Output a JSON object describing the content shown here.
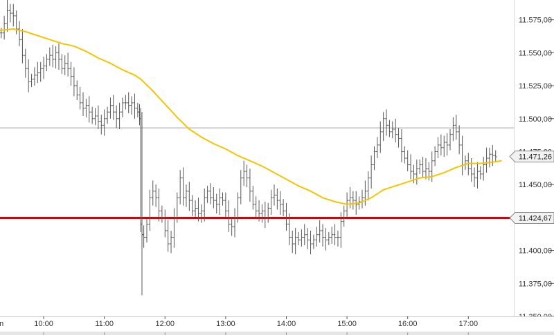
{
  "chart_data": {
    "type": "line",
    "title": "",
    "xlabel": "",
    "ylabel": "",
    "x_range": [
      9.28,
      17.75
    ],
    "ylim": [
      11350,
      11590
    ],
    "y_ticks": [
      11350,
      11375,
      11400,
      11425,
      11450,
      11475,
      11500,
      11525,
      11550,
      11575
    ],
    "y_tick_labels": [
      "11.350,00",
      "11.375,00",
      "11.400,00",
      "11.425,00",
      "11.450,00",
      "11.475,00",
      "11.500,00",
      "11.525,00",
      "11.550,00",
      "11.575,00"
    ],
    "x_ticks": [
      {
        "x": 9.27,
        "label": "un"
      },
      {
        "x": 10.0,
        "label": "10:00"
      },
      {
        "x": 11.0,
        "label": "11:00"
      },
      {
        "x": 12.0,
        "label": "12:00"
      },
      {
        "x": 13.0,
        "label": "13:00"
      },
      {
        "x": 14.0,
        "label": "14:00"
      },
      {
        "x": 15.0,
        "label": "15:00"
      },
      {
        "x": 16.0,
        "label": "16:00"
      },
      {
        "x": 17.0,
        "label": "17:00"
      }
    ],
    "grid": false,
    "series": [
      {
        "style": "ohlc-bars",
        "color": "#555555",
        "points": [
          [
            9.3,
            11565
          ],
          [
            9.35,
            11572
          ],
          [
            9.4,
            11582
          ],
          [
            9.45,
            11580
          ],
          [
            9.5,
            11578
          ],
          [
            9.55,
            11568
          ],
          [
            9.6,
            11560
          ],
          [
            9.65,
            11548
          ],
          [
            9.7,
            11538
          ],
          [
            9.75,
            11528
          ],
          [
            9.8,
            11530
          ],
          [
            9.85,
            11533
          ],
          [
            9.9,
            11535
          ],
          [
            9.95,
            11538
          ],
          [
            10.0,
            11540
          ],
          [
            10.05,
            11545
          ],
          [
            10.1,
            11548
          ],
          [
            10.15,
            11545
          ],
          [
            10.2,
            11550
          ],
          [
            10.25,
            11545
          ],
          [
            10.3,
            11538
          ],
          [
            10.35,
            11542
          ],
          [
            10.4,
            11538
          ],
          [
            10.45,
            11532
          ],
          [
            10.5,
            11525
          ],
          [
            10.55,
            11518
          ],
          [
            10.6,
            11512
          ],
          [
            10.65,
            11508
          ],
          [
            10.7,
            11510
          ],
          [
            10.75,
            11505
          ],
          [
            10.8,
            11500
          ],
          [
            10.85,
            11502
          ],
          [
            10.9,
            11498
          ],
          [
            10.95,
            11495
          ],
          [
            11.0,
            11500
          ],
          [
            11.05,
            11505
          ],
          [
            11.1,
            11510
          ],
          [
            11.15,
            11505
          ],
          [
            11.2,
            11500
          ],
          [
            11.25,
            11505
          ],
          [
            11.3,
            11512
          ],
          [
            11.35,
            11512
          ],
          [
            11.4,
            11510
          ],
          [
            11.45,
            11512
          ],
          [
            11.5,
            11508
          ],
          [
            11.55,
            11505
          ],
          [
            11.58,
            11500
          ],
          [
            11.6,
            11420
          ],
          [
            11.62,
            11412
          ],
          [
            11.65,
            11410
          ],
          [
            11.7,
            11420
          ],
          [
            11.75,
            11440
          ],
          [
            11.8,
            11445
          ],
          [
            11.85,
            11440
          ],
          [
            11.9,
            11430
          ],
          [
            11.95,
            11425
          ],
          [
            12.0,
            11415
          ],
          [
            12.05,
            11405
          ],
          [
            12.1,
            11410
          ],
          [
            12.15,
            11425
          ],
          [
            12.2,
            11440
          ],
          [
            12.25,
            11455
          ],
          [
            12.3,
            11440
          ],
          [
            12.35,
            11445
          ],
          [
            12.4,
            11438
          ],
          [
            12.45,
            11430
          ],
          [
            12.5,
            11432
          ],
          [
            12.55,
            11428
          ],
          [
            12.6,
            11430
          ],
          [
            12.65,
            11440
          ],
          [
            12.7,
            11445
          ],
          [
            12.75,
            11440
          ],
          [
            12.8,
            11438
          ],
          [
            12.85,
            11435
          ],
          [
            12.9,
            11440
          ],
          [
            12.95,
            11438
          ],
          [
            13.0,
            11430
          ],
          [
            13.05,
            11420
          ],
          [
            13.1,
            11418
          ],
          [
            13.15,
            11425
          ],
          [
            13.2,
            11440
          ],
          [
            13.25,
            11455
          ],
          [
            13.3,
            11460
          ],
          [
            13.35,
            11455
          ],
          [
            13.4,
            11445
          ],
          [
            13.45,
            11435
          ],
          [
            13.5,
            11430
          ],
          [
            13.55,
            11428
          ],
          [
            13.6,
            11430
          ],
          [
            13.65,
            11425
          ],
          [
            13.7,
            11432
          ],
          [
            13.75,
            11440
          ],
          [
            13.8,
            11442
          ],
          [
            13.85,
            11438
          ],
          [
            13.9,
            11435
          ],
          [
            13.95,
            11430
          ],
          [
            14.0,
            11420
          ],
          [
            14.05,
            11410
          ],
          [
            14.1,
            11405
          ],
          [
            14.15,
            11410
          ],
          [
            14.2,
            11408
          ],
          [
            14.25,
            11410
          ],
          [
            14.3,
            11412
          ],
          [
            14.35,
            11408
          ],
          [
            14.4,
            11405
          ],
          [
            14.45,
            11408
          ],
          [
            14.5,
            11412
          ],
          [
            14.55,
            11415
          ],
          [
            14.6,
            11410
          ],
          [
            14.65,
            11408
          ],
          [
            14.7,
            11410
          ],
          [
            14.75,
            11412
          ],
          [
            14.8,
            11410
          ],
          [
            14.85,
            11410
          ],
          [
            14.9,
            11422
          ],
          [
            14.95,
            11430
          ],
          [
            15.0,
            11438
          ],
          [
            15.05,
            11440
          ],
          [
            15.1,
            11438
          ],
          [
            15.15,
            11435
          ],
          [
            15.2,
            11437
          ],
          [
            15.25,
            11440
          ],
          [
            15.3,
            11445
          ],
          [
            15.35,
            11455
          ],
          [
            15.4,
            11465
          ],
          [
            15.45,
            11475
          ],
          [
            15.5,
            11480
          ],
          [
            15.55,
            11490
          ],
          [
            15.6,
            11500
          ],
          [
            15.65,
            11495
          ],
          [
            15.7,
            11490
          ],
          [
            15.75,
            11492
          ],
          [
            15.8,
            11488
          ],
          [
            15.85,
            11485
          ],
          [
            15.9,
            11475
          ],
          [
            15.95,
            11470
          ],
          [
            16.0,
            11465
          ],
          [
            16.05,
            11460
          ],
          [
            16.1,
            11458
          ],
          [
            16.15,
            11462
          ],
          [
            16.2,
            11465
          ],
          [
            16.25,
            11460
          ],
          [
            16.3,
            11462
          ],
          [
            16.35,
            11460
          ],
          [
            16.4,
            11468
          ],
          [
            16.45,
            11475
          ],
          [
            16.5,
            11480
          ],
          [
            16.55,
            11478
          ],
          [
            16.6,
            11482
          ],
          [
            16.65,
            11480
          ],
          [
            16.7,
            11488
          ],
          [
            16.75,
            11495
          ],
          [
            16.8,
            11490
          ],
          [
            16.85,
            11480
          ],
          [
            16.9,
            11465
          ],
          [
            16.95,
            11468
          ],
          [
            17.0,
            11462
          ],
          [
            17.05,
            11458
          ],
          [
            17.1,
            11455
          ],
          [
            17.15,
            11460
          ],
          [
            17.2,
            11458
          ],
          [
            17.25,
            11465
          ],
          [
            17.3,
            11470
          ],
          [
            17.35,
            11473
          ],
          [
            17.4,
            11472
          ],
          [
            17.45,
            11471
          ]
        ]
      },
      {
        "style": "line",
        "color": "#f5c400",
        "points": [
          [
            9.28,
            11567
          ],
          [
            9.5,
            11568
          ],
          [
            9.7,
            11566
          ],
          [
            9.9,
            11563
          ],
          [
            10.1,
            11560
          ],
          [
            10.3,
            11557
          ],
          [
            10.5,
            11555
          ],
          [
            10.7,
            11551
          ],
          [
            10.9,
            11546
          ],
          [
            11.1,
            11542
          ],
          [
            11.3,
            11537
          ],
          [
            11.5,
            11533
          ],
          [
            11.6,
            11530
          ],
          [
            11.8,
            11521
          ],
          [
            12.0,
            11511
          ],
          [
            12.2,
            11501
          ],
          [
            12.4,
            11492
          ],
          [
            12.6,
            11486
          ],
          [
            12.8,
            11481
          ],
          [
            13.0,
            11477
          ],
          [
            13.2,
            11472
          ],
          [
            13.4,
            11468
          ],
          [
            13.6,
            11464
          ],
          [
            13.8,
            11459
          ],
          [
            14.0,
            11454
          ],
          [
            14.2,
            11449
          ],
          [
            14.4,
            11445
          ],
          [
            14.6,
            11440
          ],
          [
            14.8,
            11437
          ],
          [
            15.0,
            11435
          ],
          [
            15.2,
            11436
          ],
          [
            15.4,
            11440
          ],
          [
            15.6,
            11446
          ],
          [
            15.8,
            11449
          ],
          [
            16.0,
            11452
          ],
          [
            16.2,
            11455
          ],
          [
            16.4,
            11456
          ],
          [
            16.6,
            11459
          ],
          [
            16.8,
            11463
          ],
          [
            17.0,
            11466
          ],
          [
            17.2,
            11466
          ],
          [
            17.4,
            11467
          ],
          [
            17.55,
            11468
          ]
        ]
      },
      {
        "style": "horizontal-line",
        "color": "#a0a0a0",
        "y": 11493
      },
      {
        "style": "horizontal-line",
        "color": "#dd0000",
        "y": 11424.67
      }
    ],
    "price_tags": [
      {
        "value": 11471.26,
        "label": "11.471,26"
      },
      {
        "value": 11424.67,
        "label": "11.424,67"
      }
    ]
  }
}
